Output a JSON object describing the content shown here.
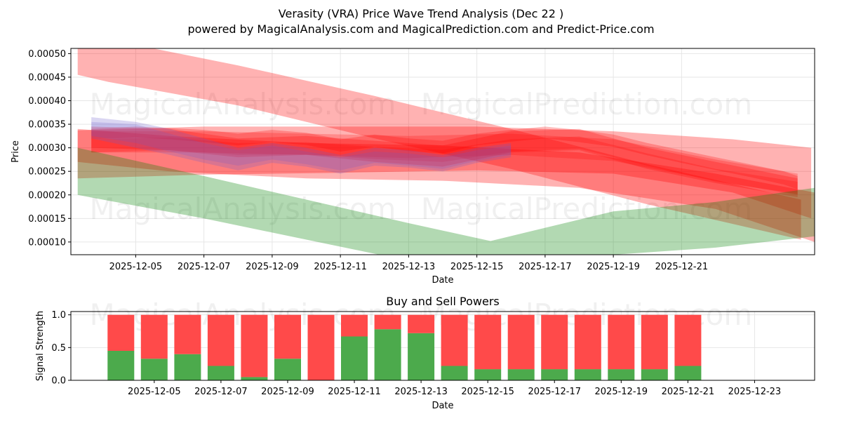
{
  "figure": {
    "title_line1": "Verasity (VRA) Price Wave Trend Analysis (Dec 22 )",
    "title_line2": "powered by MagicalAnalysis.com and MagicalPrediction.com and Predict-Price.com",
    "watermarks": [
      "MagicalAnalysis.com",
      "MagicalPrediction.com"
    ]
  },
  "colors": {
    "red_band": "#ff0000",
    "green_band": "#008000",
    "purple_band": "#6a5acd",
    "buy": "#4caa4c",
    "sell": "#ff4a4a",
    "grid": "#e6e6e6"
  },
  "chart_data": [
    {
      "type": "area",
      "title": "",
      "xlabel": "Date",
      "ylabel": "Price",
      "x_tick_labels": [
        "2025-12-05",
        "2025-12-07",
        "2025-12-09",
        "2025-12-11",
        "2025-12-13",
        "2025-12-15",
        "2025-12-17",
        "2025-12-19",
        "2025-12-21"
      ],
      "y_tick_labels": [
        "0.00010",
        "0.00015",
        "0.00020",
        "0.00025",
        "0.00030",
        "0.00035",
        "0.00040",
        "0.00045",
        "0.00050"
      ],
      "xlim": [
        -0.9,
        20.9
      ],
      "ylim": [
        7.3e-05,
        0.000511
      ],
      "note": "x values are days after 2025-12-04 (0 = 2025-12-04)",
      "series": [
        {
          "name": "red-wide-upper-band",
          "color": "red",
          "opacity": 0.3,
          "x": [
            -0.7,
            0.2,
            4,
            8,
            12,
            16,
            20.5
          ],
          "upper": [
            0.00054,
            0.00053,
            0.000475,
            0.00041,
            0.00034,
            0.000265,
            0.00019
          ],
          "lower": [
            0.000455,
            0.00044,
            0.00039,
            0.00032,
            0.000255,
            0.00018,
            0.000105
          ]
        },
        {
          "name": "red-wide-mid-band",
          "color": "red",
          "opacity": 0.3,
          "x": [
            -0.7,
            3,
            7,
            11,
            15,
            18.5,
            20.8
          ],
          "upper": [
            0.000337,
            0.000345,
            0.000345,
            0.000345,
            0.000335,
            0.000318,
            0.0003
          ],
          "lower": [
            0.000235,
            0.000243,
            0.000247,
            0.000252,
            0.000245,
            0.000205,
            0.00015
          ]
        },
        {
          "name": "red-wide-low-band",
          "color": "red",
          "opacity": 0.3,
          "x": [
            -0.7,
            2,
            6,
            10,
            14,
            18,
            20.9
          ],
          "upper": [
            0.00034,
            0.000325,
            0.00031,
            0.000305,
            0.00029,
            0.000245,
            0.000205
          ],
          "lower": [
            0.00027,
            0.00025,
            0.000235,
            0.00023,
            0.000215,
            0.00017,
            0.0001
          ]
        },
        {
          "name": "red-core-1",
          "color": "red",
          "opacity": 0.25,
          "x": [
            -0.3,
            1,
            2,
            3,
            4,
            5,
            6,
            7,
            8,
            9,
            10,
            11,
            12,
            13,
            14,
            15,
            16,
            17,
            18,
            19,
            20,
            20.4
          ],
          "upper": [
            0.00034,
            0.000345,
            0.000342,
            0.000338,
            0.00033,
            0.000338,
            0.000332,
            0.000318,
            0.000328,
            0.00032,
            0.000315,
            0.00033,
            0.000338,
            0.000345,
            0.000338,
            0.000328,
            0.00031,
            0.000295,
            0.00028,
            0.000265,
            0.00025,
            0.00024
          ],
          "lower": [
            0.000318,
            0.000322,
            0.000318,
            0.000312,
            0.000305,
            0.000312,
            0.000306,
            0.000292,
            0.000302,
            0.000293,
            0.000288,
            0.000305,
            0.000313,
            0.00032,
            0.000312,
            0.000302,
            0.000284,
            0.000268,
            0.000253,
            0.000238,
            0.000222,
            0.000212
          ]
        },
        {
          "name": "red-core-2",
          "color": "red",
          "opacity": 0.25,
          "x": [
            -0.3,
            2,
            4,
            6,
            8,
            10,
            12,
            14,
            16,
            18,
            20.4
          ],
          "upper": [
            0.000345,
            0.00034,
            0.00032,
            0.000325,
            0.000315,
            0.000305,
            0.000335,
            0.00034,
            0.0003,
            0.00027,
            0.000235
          ],
          "lower": [
            0.0003,
            0.000295,
            0.00028,
            0.000285,
            0.00027,
            0.00026,
            0.00029,
            0.000295,
            0.000255,
            0.000225,
            0.000195
          ]
        },
        {
          "name": "red-core-3",
          "color": "red",
          "opacity": 0.22,
          "x": [
            -0.3,
            3,
            6,
            9,
            12,
            15,
            18,
            20.4
          ],
          "upper": [
            0.000335,
            0.000335,
            0.00033,
            0.000325,
            0.00033,
            0.000318,
            0.000275,
            0.000245
          ],
          "lower": [
            0.00029,
            0.00029,
            0.000285,
            0.000278,
            0.000285,
            0.000272,
            0.00023,
            0.0002
          ]
        },
        {
          "name": "red-core-4",
          "color": "red",
          "opacity": 0.22,
          "x": [
            -0.3,
            2,
            4,
            6,
            8,
            10,
            12,
            14,
            16,
            18,
            20.4
          ],
          "upper": [
            0.000318,
            0.000322,
            0.00031,
            0.000312,
            0.000302,
            0.000296,
            0.000318,
            0.000324,
            0.000288,
            0.000255,
            0.000228
          ],
          "lower": [
            0.00029,
            0.000295,
            0.000285,
            0.000286,
            0.000276,
            0.00027,
            0.000292,
            0.000298,
            0.000262,
            0.000228,
            0.000202
          ]
        },
        {
          "name": "purple-band-1",
          "color": "purple",
          "opacity": 0.25,
          "x": [
            -0.3,
            1,
            2,
            3,
            4,
            5,
            6,
            7,
            8,
            9,
            10,
            11,
            12
          ],
          "upper": [
            0.000365,
            0.000355,
            0.00034,
            0.00032,
            0.0003,
            0.00031,
            0.0003,
            0.000285,
            0.0003,
            0.000295,
            0.000285,
            0.0003,
            0.00031
          ],
          "lower": [
            0.00032,
            0.0003,
            0.000285,
            0.000268,
            0.000252,
            0.000268,
            0.00026,
            0.000245,
            0.000262,
            0.000258,
            0.00025,
            0.000268,
            0.00028
          ]
        },
        {
          "name": "purple-band-2",
          "color": "purple",
          "opacity": 0.2,
          "x": [
            -0.3,
            1,
            2,
            3,
            4,
            5,
            6,
            7,
            8,
            9,
            10,
            11,
            12
          ],
          "upper": [
            0.000355,
            0.00035,
            0.00033,
            0.00031,
            0.000295,
            0.000305,
            0.000292,
            0.00028,
            0.000292,
            0.000288,
            0.00028,
            0.000295,
            0.000305
          ],
          "lower": [
            0.000325,
            0.00031,
            0.000292,
            0.000275,
            0.000262,
            0.000275,
            0.000265,
            0.000252,
            0.000268,
            0.000262,
            0.000255,
            0.000272,
            0.000285
          ]
        },
        {
          "name": "green-band",
          "color": "green",
          "opacity": 0.3,
          "x": [
            -0.7,
            3,
            6,
            9,
            11.4,
            15,
            18,
            20.9
          ],
          "upper": [
            0.0003,
            0.00024,
            0.00019,
            0.00014,
            0.000102,
            0.000165,
            0.000185,
            0.000215
          ],
          "lower": [
            0.0002,
            0.00015,
            0.000105,
            6e-05,
            5e-05,
            7.3e-05,
            8.8e-05,
            0.000112
          ]
        }
      ]
    },
    {
      "type": "bar",
      "title": "Buy and Sell Powers",
      "xlabel": "Date",
      "ylabel": "Signal Strength",
      "x_tick_labels": [
        "2025-12-05",
        "2025-12-07",
        "2025-12-09",
        "2025-12-11",
        "2025-12-13",
        "2025-12-15",
        "2025-12-17",
        "2025-12-19",
        "2025-12-21",
        "2025-12-23"
      ],
      "y_tick_labels": [
        "0.0",
        "0.5",
        "1.0"
      ],
      "xlim": [
        -1.5,
        20.8
      ],
      "ylim": [
        0,
        1.05
      ],
      "note": "x values are days after 2025-12-04",
      "x": [
        0,
        1,
        2,
        3,
        4,
        5,
        6,
        7,
        8,
        9,
        10,
        11,
        12,
        13,
        14,
        15,
        16,
        17
      ],
      "series": [
        {
          "name": "Buy",
          "color": "buy",
          "values": [
            0.45,
            0.33,
            0.4,
            0.22,
            0.05,
            0.33,
            0.0,
            0.67,
            0.78,
            0.72,
            0.22,
            0.17,
            0.17,
            0.17,
            0.17,
            0.17,
            0.17,
            0.22
          ]
        },
        {
          "name": "Sell",
          "color": "sell",
          "values": [
            0.55,
            0.67,
            0.6,
            0.78,
            0.95,
            0.67,
            1.0,
            0.33,
            0.22,
            0.28,
            0.78,
            0.83,
            0.83,
            0.83,
            0.83,
            0.83,
            0.83,
            0.78
          ]
        }
      ]
    }
  ]
}
